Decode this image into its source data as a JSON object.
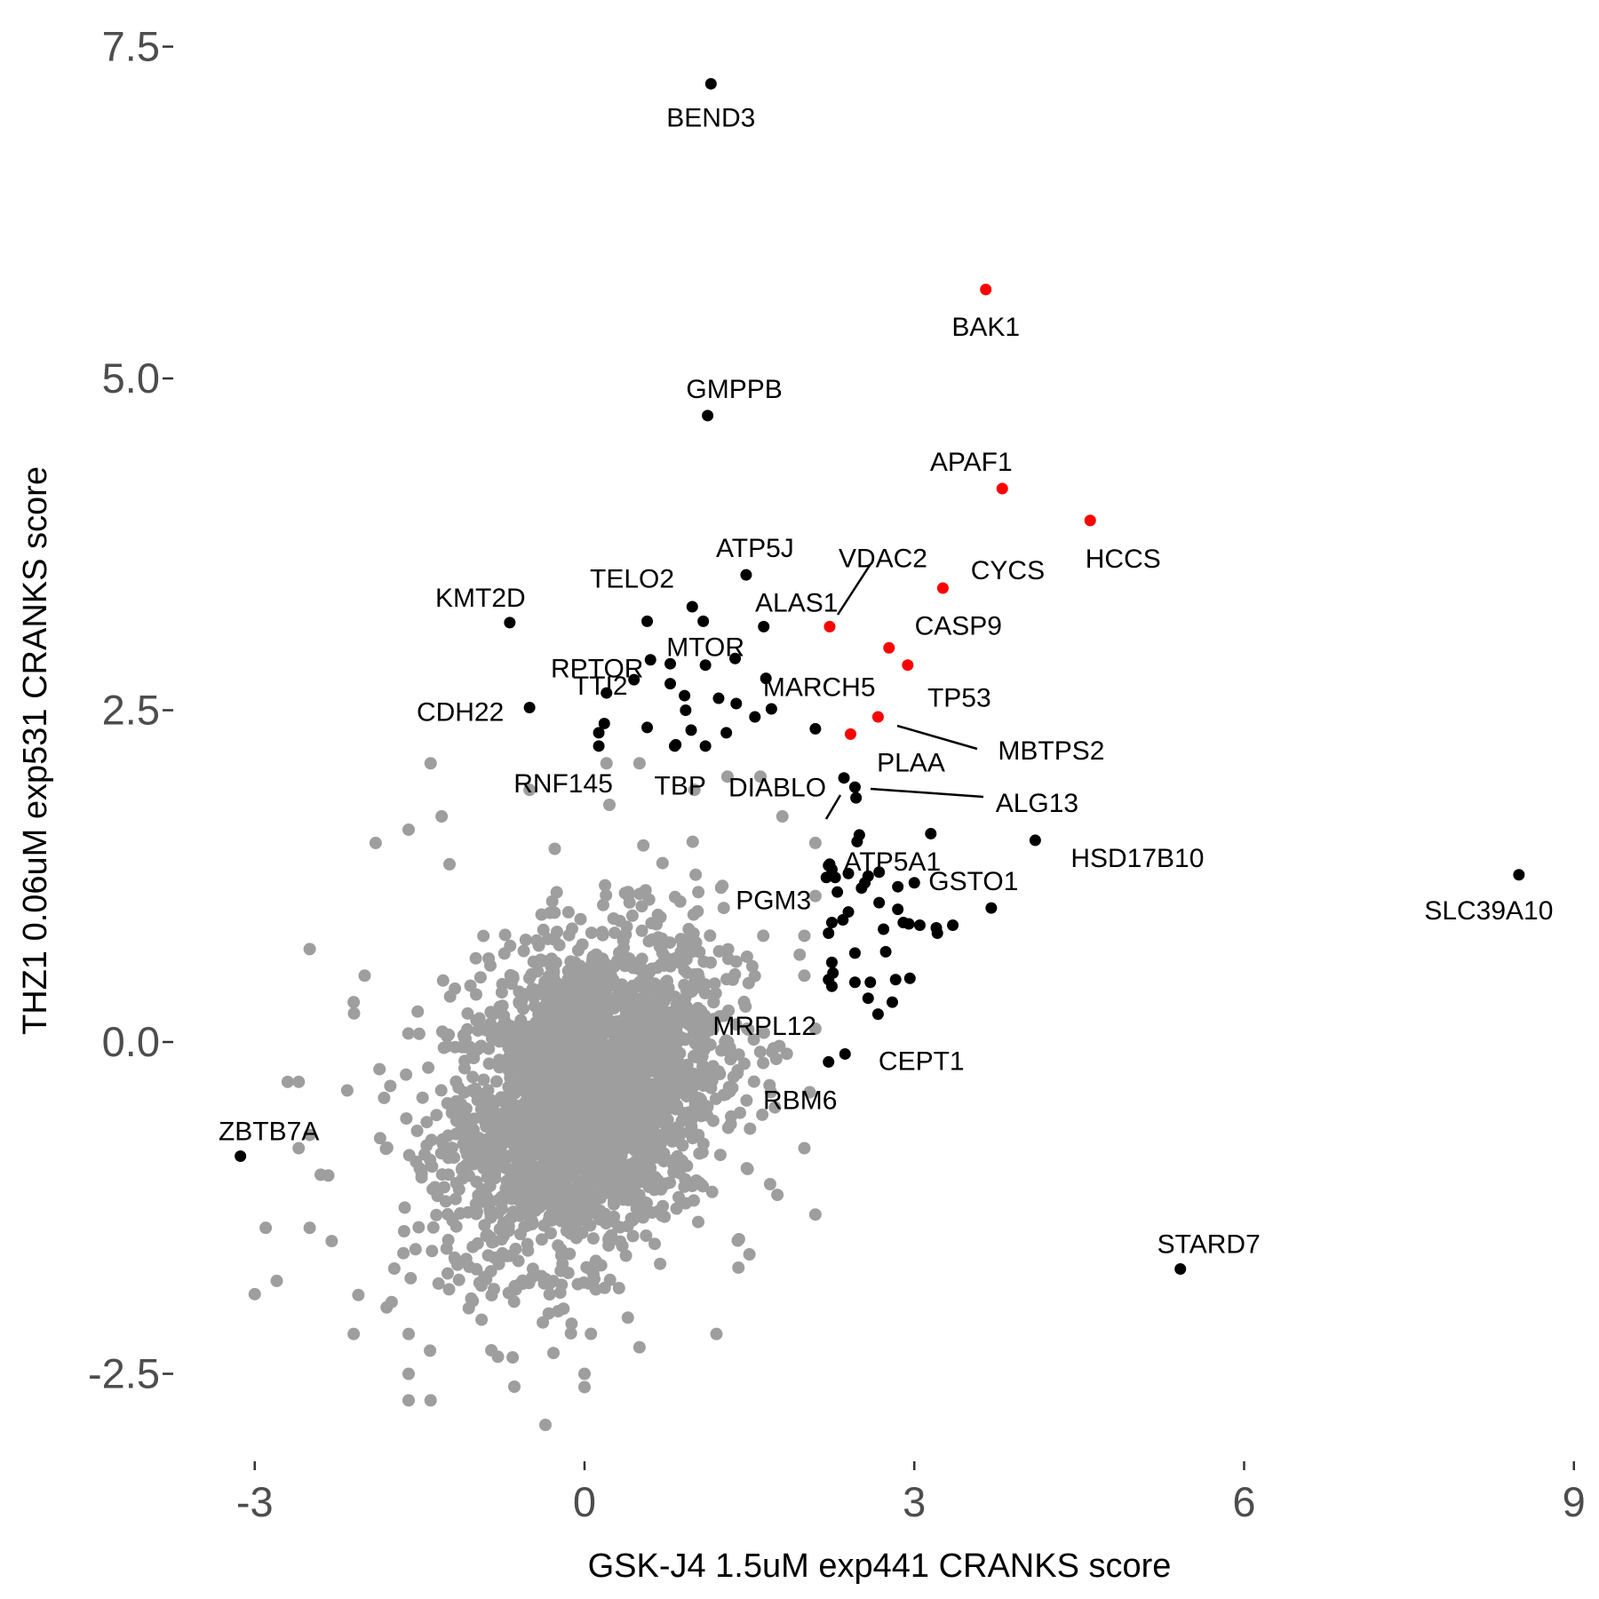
{
  "chart_data": {
    "type": "scatter",
    "title": "",
    "xlabel": "GSK-J4 1.5uM exp441 CRANKS score",
    "ylabel": "THZ1 0.06uM exp531 CRANKS score",
    "xlim": [
      -3.4,
      9.0
    ],
    "ylim": [
      -3.0,
      7.7
    ],
    "x_ticks": [
      -3,
      0,
      3,
      6,
      9
    ],
    "x_tick_labels": [
      "-3",
      "0",
      "3",
      "6",
      "9"
    ],
    "y_ticks": [
      -2.5,
      0.0,
      2.5,
      5.0,
      7.5
    ],
    "y_tick_labels": [
      "-2.5",
      "0.0",
      "2.5",
      "5.0",
      "7.5"
    ],
    "grid": false,
    "colors": {
      "background": "#cloud",
      "points": "#9e9e9e",
      "highlight": "#000000",
      "apoptosis": "#ff0000"
    },
    "background_cloud": {
      "description_center": [
        0.0,
        -0.4
      ],
      "count": 2600,
      "sd": [
        0.62,
        0.62
      ],
      "correlation": 0.3
    },
    "background_outliers": [
      [
        -1.4,
        2.1
      ],
      [
        -1.9,
        1.5
      ],
      [
        -1.6,
        1.6
      ],
      [
        -2.5,
        0.7
      ],
      [
        -2.0,
        0.5
      ],
      [
        -2.1,
        0.3
      ],
      [
        -2.7,
        -0.3
      ],
      [
        -2.6,
        -0.3
      ],
      [
        -2.5,
        -0.7
      ],
      [
        -2.6,
        -0.8
      ],
      [
        -2.4,
        -1.0
      ],
      [
        -2.9,
        -1.4
      ],
      [
        -2.5,
        -1.4
      ],
      [
        -2.3,
        -1.5
      ],
      [
        -2.8,
        -1.8
      ],
      [
        -3.0,
        -1.9
      ],
      [
        -2.1,
        -2.2
      ],
      [
        -1.6,
        -2.2
      ],
      [
        -1.6,
        -2.5
      ],
      [
        -1.6,
        -2.7
      ],
      [
        -1.4,
        -2.7
      ],
      [
        -1.8,
        -2.0
      ],
      [
        0.0,
        -2.5
      ],
      [
        0.0,
        -2.6
      ],
      [
        0.5,
        -2.3
      ],
      [
        1.2,
        -2.2
      ],
      [
        1.4,
        -1.7
      ],
      [
        1.5,
        -1.6
      ],
      [
        2.1,
        -1.3
      ],
      [
        2.0,
        -0.8
      ],
      [
        2.1,
        0.1
      ],
      [
        2.0,
        0.5
      ],
      [
        2.0,
        0.8
      ],
      [
        2.1,
        1.1
      ],
      [
        2.1,
        1.5
      ],
      [
        1.8,
        1.7
      ],
      [
        1.0,
        1.9
      ],
      [
        -0.5,
        1.9
      ],
      [
        1.3,
        2.0
      ],
      [
        0.2,
        2.1
      ],
      [
        0.5,
        2.1
      ],
      [
        1.6,
        2.0
      ],
      [
        -1.3,
        1.7
      ]
    ],
    "highlighted": [
      {
        "gene": "BEND3",
        "x": 1.15,
        "y": 7.22,
        "color": "black",
        "label": true
      },
      {
        "gene": "BAK1",
        "x": 3.65,
        "y": 5.67,
        "color": "red",
        "label": true
      },
      {
        "gene": "GMPPB",
        "x": 1.12,
        "y": 4.72,
        "color": "black",
        "label": true
      },
      {
        "gene": "APAF1",
        "x": 3.8,
        "y": 4.17,
        "color": "red",
        "label": true
      },
      {
        "gene": "HCCS",
        "x": 4.6,
        "y": 3.93,
        "color": "red",
        "label": true
      },
      {
        "gene": "ATP5J",
        "x": 1.47,
        "y": 3.52,
        "color": "black",
        "label": true
      },
      {
        "gene": "VDAC2",
        "x": 2.23,
        "y": 3.13,
        "color": "red",
        "label": true
      },
      {
        "gene": "CYCS",
        "x": 3.26,
        "y": 3.42,
        "color": "red",
        "label": true
      },
      {
        "gene": "KMT2D",
        "x": -0.68,
        "y": 3.16,
        "color": "black",
        "label": true
      },
      {
        "gene": "TELO2",
        "x": 0.57,
        "y": 3.17,
        "color": "black",
        "label": true
      },
      {
        "gene": "ALAS1",
        "x": 1.63,
        "y": 3.13,
        "color": "black",
        "label": true
      },
      {
        "gene": "CASP9",
        "x": 2.77,
        "y": 2.97,
        "color": "red",
        "label": true
      },
      {
        "gene": "RPTOR",
        "x": 0.6,
        "y": 2.88,
        "color": "black",
        "label": true
      },
      {
        "gene": "MTOR",
        "x": 1.1,
        "y": 2.84,
        "color": "black",
        "label": true
      },
      {
        "gene": "TP53",
        "x": 2.94,
        "y": 2.84,
        "color": "red",
        "label": true
      },
      {
        "gene": "MARCH5",
        "x": 1.65,
        "y": 2.74,
        "color": "black",
        "label": true
      },
      {
        "gene": "CDH22",
        "x": -0.5,
        "y": 2.52,
        "color": "black",
        "label": true
      },
      {
        "gene": "TTI2",
        "x": 0.2,
        "y": 2.63,
        "color": "black",
        "label": true
      },
      {
        "gene": "MBTPS2",
        "x": 2.67,
        "y": 2.45,
        "color": "red",
        "label": true
      },
      {
        "gene": "PLAA",
        "x": 2.42,
        "y": 2.32,
        "color": "red",
        "label": true
      },
      {
        "gene": "RNF145",
        "x": 0.13,
        "y": 2.23,
        "color": "black",
        "label": true
      },
      {
        "gene": "TBP",
        "x": 0.83,
        "y": 2.24,
        "color": "black",
        "label": true
      },
      {
        "gene": "DIABLO",
        "x": 2.36,
        "y": 1.99,
        "color": "black",
        "label": true
      },
      {
        "gene": "ALG13",
        "x": 2.46,
        "y": 1.92,
        "color": "black",
        "label": true
      },
      {
        "gene": "ATP5A1",
        "x": 2.5,
        "y": 1.56,
        "color": "black",
        "label": true
      },
      {
        "gene": "PGM3",
        "x": 2.22,
        "y": 1.33,
        "color": "black",
        "label": true
      },
      {
        "gene": "HSD17B10",
        "x": 4.1,
        "y": 1.52,
        "color": "black",
        "label": true
      },
      {
        "gene": "GSTO1",
        "x": 3.7,
        "y": 1.01,
        "color": "black",
        "label": true
      },
      {
        "gene": "SLC39A10",
        "x": 8.5,
        "y": 1.26,
        "color": "black",
        "label": true
      },
      {
        "gene": "MRPL12",
        "x": 2.22,
        "y": 0.47,
        "color": "black",
        "label": true
      },
      {
        "gene": "CEPT1",
        "x": 2.37,
        "y": -0.09,
        "color": "black",
        "label": true
      },
      {
        "gene": "RBM6",
        "x": 2.22,
        "y": -0.15,
        "color": "black",
        "label": true
      },
      {
        "gene": "ZBTB7A",
        "x": -3.13,
        "y": -0.86,
        "color": "black",
        "label": true
      },
      {
        "gene": "STARD7",
        "x": 5.42,
        "y": -1.71,
        "color": "black",
        "label": true
      }
    ],
    "unlabeled_black": [
      [
        0.98,
        3.28
      ],
      [
        1.08,
        3.17
      ],
      [
        0.78,
        2.85
      ],
      [
        1.37,
        2.89
      ],
      [
        0.45,
        2.73
      ],
      [
        0.78,
        2.7
      ],
      [
        0.18,
        2.4
      ],
      [
        0.91,
        2.61
      ],
      [
        1.22,
        2.59
      ],
      [
        0.92,
        2.5
      ],
      [
        1.38,
        2.55
      ],
      [
        1.7,
        2.51
      ],
      [
        1.55,
        2.45
      ],
      [
        0.97,
        2.35
      ],
      [
        0.57,
        2.37
      ],
      [
        2.1,
        2.36
      ],
      [
        0.13,
        2.33
      ],
      [
        0.82,
        2.23
      ],
      [
        1.1,
        2.23
      ],
      [
        1.29,
        2.33
      ],
      [
        2.47,
        1.84
      ],
      [
        3.15,
        1.57
      ],
      [
        2.48,
        1.51
      ],
      [
        2.23,
        1.34
      ],
      [
        2.25,
        1.3
      ],
      [
        2.2,
        1.24
      ],
      [
        2.28,
        1.24
      ],
      [
        2.4,
        1.27
      ],
      [
        2.58,
        1.25
      ],
      [
        2.68,
        1.28
      ],
      [
        2.85,
        1.17
      ],
      [
        3.0,
        1.2
      ],
      [
        2.55,
        1.2
      ],
      [
        2.52,
        1.16
      ],
      [
        2.3,
        1.13
      ],
      [
        2.68,
        1.05
      ],
      [
        2.85,
        1.0
      ],
      [
        2.4,
        0.98
      ],
      [
        2.35,
        0.92
      ],
      [
        2.25,
        0.9
      ],
      [
        2.95,
        0.89
      ],
      [
        3.05,
        0.88
      ],
      [
        3.2,
        0.86
      ],
      [
        3.35,
        0.88
      ],
      [
        3.21,
        0.82
      ],
      [
        2.9,
        0.9
      ],
      [
        2.72,
        0.85
      ],
      [
        2.22,
        0.82
      ],
      [
        2.25,
        0.6
      ],
      [
        2.46,
        0.67
      ],
      [
        2.74,
        0.68
      ],
      [
        2.26,
        0.52
      ],
      [
        2.25,
        0.42
      ],
      [
        2.46,
        0.45
      ],
      [
        2.6,
        0.45
      ],
      [
        2.83,
        0.47
      ],
      [
        2.96,
        0.48
      ],
      [
        2.58,
        0.33
      ],
      [
        2.8,
        0.3
      ],
      [
        2.67,
        0.21
      ]
    ]
  }
}
